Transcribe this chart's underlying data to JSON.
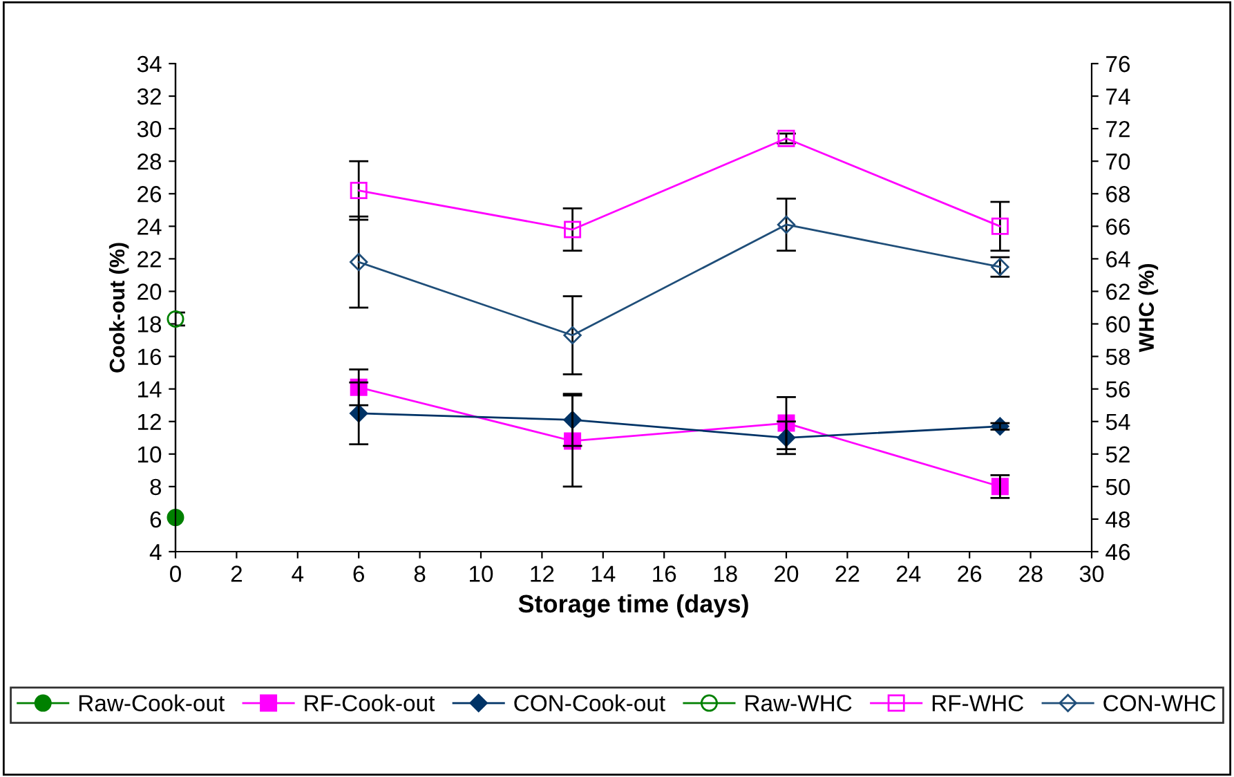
{
  "chart_data": {
    "type": "line",
    "xlabel": "Storage time (days)",
    "ylabel": "Cook-out (%)",
    "y2label": "WHC (%)",
    "xlim": [
      0,
      30
    ],
    "xticks": [
      0,
      2,
      4,
      6,
      8,
      10,
      12,
      14,
      16,
      18,
      20,
      22,
      24,
      26,
      28,
      30
    ],
    "ylim": [
      4,
      34
    ],
    "yticks": [
      4,
      6,
      8,
      10,
      12,
      14,
      16,
      18,
      20,
      22,
      24,
      26,
      28,
      30,
      32,
      34
    ],
    "y2lim": [
      46,
      76
    ],
    "y2ticks": [
      46,
      48,
      50,
      52,
      54,
      56,
      58,
      60,
      62,
      64,
      66,
      68,
      70,
      72,
      74,
      76
    ],
    "grid": false,
    "legend": "bottom",
    "series": [
      {
        "name": "Raw-Cook-out",
        "color": "#008000",
        "marker": "circle",
        "x": [
          0
        ],
        "values": [
          6.1
        ]
      },
      {
        "name": "RF-Cook-out",
        "color": "#ff00ff",
        "marker": "square",
        "x": [
          6,
          13,
          20,
          27
        ],
        "values": [
          14.1,
          10.8,
          11.9,
          8.0
        ],
        "errors": [
          1.1,
          2.8,
          1.6,
          0.7
        ]
      },
      {
        "name": "CON-Cook-out",
        "color": "#003366",
        "marker": "diamond",
        "x": [
          6,
          13,
          20,
          27
        ],
        "values": [
          12.5,
          12.1,
          11.0,
          11.7
        ],
        "errors": [
          1.9,
          1.6,
          1.0,
          0.2
        ]
      },
      {
        "name": "Raw-WHC",
        "color": "#008000",
        "marker": "circle",
        "axis": "y2",
        "x": [
          0
        ],
        "values": [
          60.3
        ],
        "errors": [
          0.4
        ]
      },
      {
        "name": "RF-WHC",
        "color": "#ff00ff",
        "marker": "square",
        "axis": "y2",
        "x": [
          6,
          13,
          20,
          27
        ],
        "values": [
          68.2,
          65.8,
          71.4,
          66.0
        ],
        "errors": [
          1.8,
          1.3,
          0.3,
          1.5
        ]
      },
      {
        "name": "CON-WHC",
        "color": "#1f4e79",
        "marker": "diamond",
        "axis": "y2",
        "x": [
          6,
          13,
          20,
          27
        ],
        "values": [
          63.8,
          59.3,
          66.1,
          63.5
        ],
        "errors": [
          2.8,
          2.4,
          1.6,
          0.6
        ]
      }
    ]
  }
}
